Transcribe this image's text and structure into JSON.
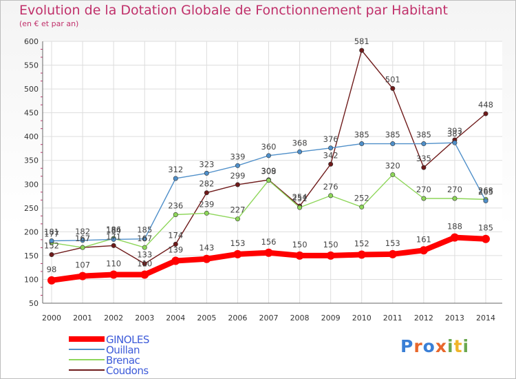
{
  "title": "Evolution de la Dotation Globale de Fonctionnement par Habitant",
  "subtitle": "(en € et par an)",
  "logo": {
    "letters": [
      "P",
      "r",
      "o",
      "x",
      "i",
      "t",
      "i"
    ],
    "colors": [
      "#3a7fd6",
      "#e8672b",
      "#3a7fd6",
      "#e8672b",
      "#6aa84f",
      "#f0b429",
      "#6aa84f"
    ]
  },
  "chart_data": {
    "type": "line",
    "x": [
      "2000",
      "2001",
      "2002",
      "2003",
      "2004",
      "2005",
      "2006",
      "2007",
      "2008",
      "2009",
      "2010",
      "2011",
      "2012",
      "2013",
      "2014"
    ],
    "ylim": [
      50,
      600
    ],
    "yticks": [
      "50",
      "100",
      "150",
      "200",
      "250",
      "300",
      "350",
      "400",
      "450",
      "500",
      "550",
      "600"
    ],
    "grid": true,
    "legend": "bottom-left",
    "series": [
      {
        "name": "GINOLES",
        "color": "#ff0000",
        "width": 8,
        "values": [
          98,
          107,
          110,
          110,
          139,
          143,
          153,
          156,
          150,
          150,
          152,
          153,
          161,
          188,
          185
        ],
        "labels": [
          "98",
          "107",
          "110",
          "110",
          "139",
          "143",
          "153",
          "156",
          "150",
          "150",
          "152",
          "153",
          "161",
          "188",
          "185"
        ]
      },
      {
        "name": "Ouillan",
        "color": "#4f8fc9",
        "width": 1.4,
        "values": [
          181,
          182,
          184,
          185,
          312,
          323,
          339,
          360,
          368,
          376,
          385,
          385,
          385,
          387,
          265
        ],
        "labels": [
          "181",
          "182",
          "184",
          "185",
          "312",
          "323",
          "339",
          "360",
          "368",
          "376",
          "385",
          "385",
          "385",
          "387",
          "265"
        ]
      },
      {
        "name": "Brenac",
        "color": "#8ed65a",
        "width": 1.4,
        "values": [
          177,
          167,
          186,
          167,
          236,
          239,
          227,
          308,
          251,
          276,
          252,
          320,
          270,
          270,
          268
        ],
        "labels": [
          "177",
          "167",
          "186",
          "167",
          "236",
          "239",
          "227",
          "308",
          "251",
          "276",
          "252",
          "320",
          "270",
          "270",
          "268"
        ]
      },
      {
        "name": "Coudons",
        "color": "#6e1a1a",
        "width": 1.4,
        "values": [
          152,
          167,
          171,
          133,
          174,
          282,
          299,
          309,
          254,
          342,
          581,
          501,
          335,
          393,
          448
        ],
        "labels": [
          "152",
          "167",
          "171",
          "133",
          "174",
          "282",
          "299",
          "309",
          "254",
          "342",
          "581",
          "501",
          "335",
          "393",
          "448"
        ]
      }
    ]
  }
}
